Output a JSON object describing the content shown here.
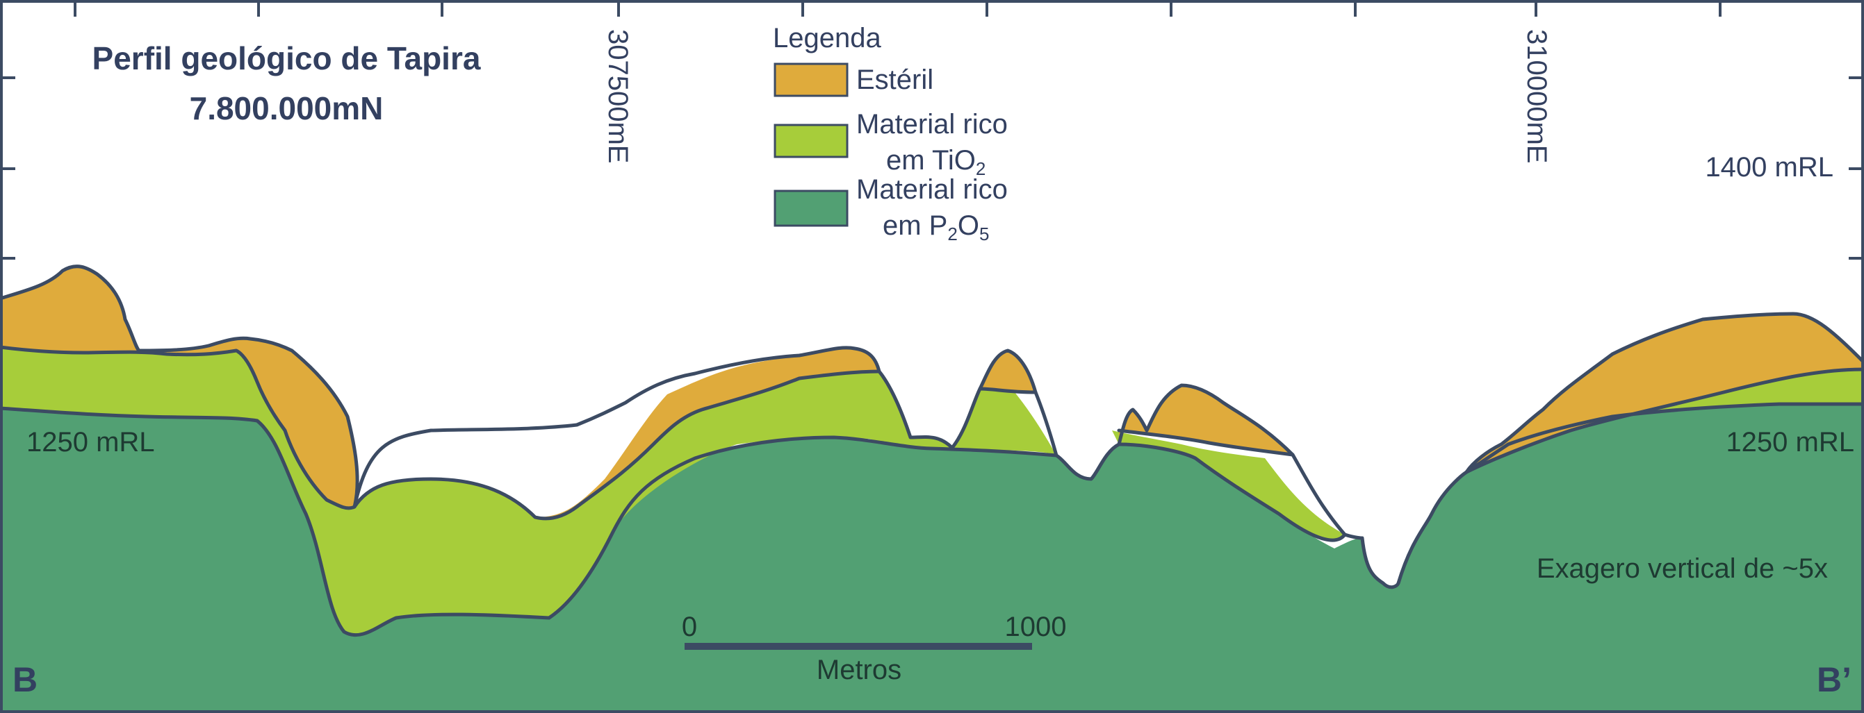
{
  "title": {
    "line1": "Perfil geológico de Tapira",
    "line2": "7.800.000mN"
  },
  "legend": {
    "heading": "Legenda",
    "items": [
      {
        "line1": "Estéril",
        "line2": "",
        "color": "#dfab3c"
      },
      {
        "line1": "Material rico",
        "line2_prefix": "em TiO",
        "line2_sub": "2",
        "line2_after": "",
        "color": "#a7cd3a"
      },
      {
        "line1": "Material rico",
        "line2_prefix": "em P",
        "line2_sub": "2",
        "line2_mid": "O",
        "line2_sub2": "5",
        "color": "#52a073"
      }
    ]
  },
  "easting_labels": [
    "307500mE",
    "310000mE"
  ],
  "elevation_labels": {
    "upper_right": "1400 mRL",
    "left": "1250 mRL",
    "right": "1250 mRL"
  },
  "scale_bar": {
    "start": "0",
    "end": "1000",
    "unit": "Metros"
  },
  "note": "Exagero vertical de ~5x",
  "section_ends": {
    "left": "B",
    "right": "B’"
  },
  "colors": {
    "esteril": "#dfab3c",
    "tio2": "#a7cd3a",
    "p2o5": "#52a073",
    "outline": "#3c4b63",
    "text": "#334060"
  }
}
